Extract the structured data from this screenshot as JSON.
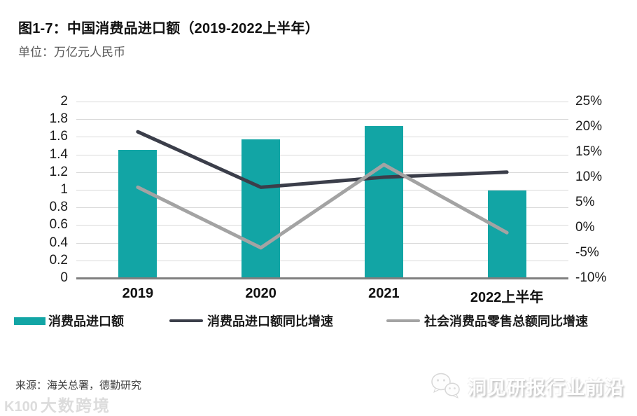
{
  "title": "图1-7：中国消费品进口额（2019-2022上半年）",
  "subtitle": "单位：万亿元人民币",
  "source": "来源：海关总署，德勤研究",
  "watermarks": {
    "bottom_left_mark": "K100",
    "bottom_left_text": "大数跨境",
    "bottom_right_text": "洞见研报行业前沿"
  },
  "colors": {
    "bar": "#12a5a5",
    "line_dark": "#3b3e4a",
    "line_gray": "#a3a3a3",
    "grid": "#d9d9d9",
    "axis": "#7f7f7f",
    "tick_text": "#1a1a1a"
  },
  "chart_data": {
    "type": "bar+line",
    "title": "中国消费品进口额（2019-2022上半年）",
    "unit": "万亿元人民币",
    "categories": [
      "2019",
      "2020",
      "2021",
      "2022上半年"
    ],
    "bar_series": {
      "name": "消费品进口额",
      "axis": "left",
      "values": [
        1.45,
        1.57,
        1.72,
        0.99
      ]
    },
    "line_series": [
      {
        "name": "消费品进口额同比增速",
        "axis": "right",
        "values_pct": [
          19,
          8,
          10,
          11
        ]
      },
      {
        "name": "社会消费品零售总额同比增速",
        "axis": "right",
        "values_pct": [
          8,
          -4,
          12.5,
          -1
        ]
      }
    ],
    "left_axis": {
      "min": 0,
      "max": 2,
      "step": 0.2,
      "tick_labels": [
        "2",
        "1.8",
        "1.6",
        "1.4",
        "1.2",
        "1",
        "0.8",
        "0.6",
        "0.4",
        "0.2",
        "0"
      ]
    },
    "right_axis": {
      "min": -10,
      "max": 25,
      "step": 5,
      "tick_labels": [
        "25%",
        "20%",
        "15%",
        "10%",
        "5%",
        "0%",
        "-5%",
        "-10%"
      ]
    },
    "legend": [
      "消费品进口额",
      "消费品进口额同比增速",
      "社会消费品零售总额同比增速"
    ],
    "legend_position": "bottom",
    "grid": true
  }
}
